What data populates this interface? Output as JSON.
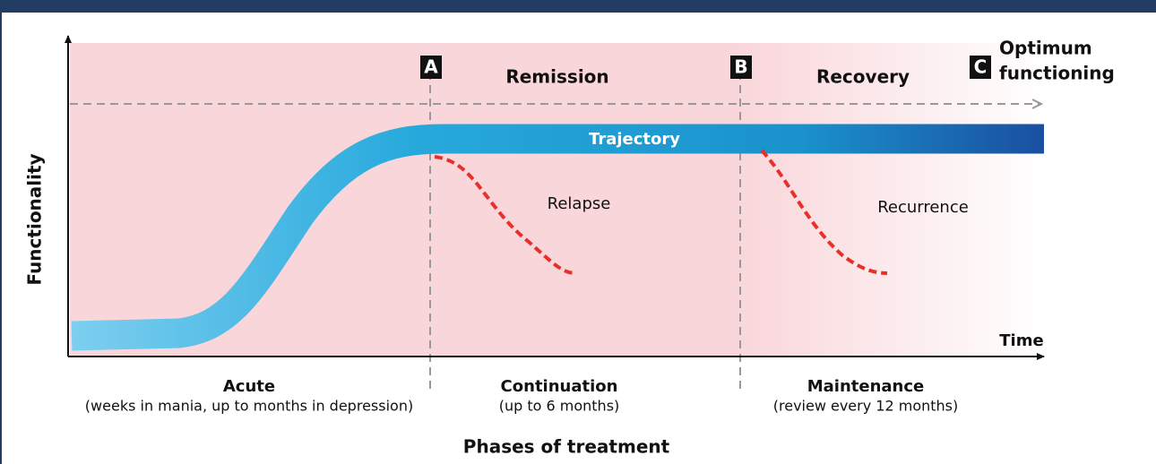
{
  "diagram": {
    "y_axis_label": "Functionality",
    "x_axis_label": "Time",
    "top_label": "Optimum functioning",
    "markers": [
      {
        "letter": "A",
        "label": "Remission"
      },
      {
        "letter": "B",
        "label": "Recovery"
      },
      {
        "letter": "C"
      }
    ],
    "trajectory": "Trajectory",
    "relapse": "Relapse",
    "recurrence": "Recurrence",
    "phases": [
      {
        "name": "Acute",
        "detail": "(weeks in mania, up to months in depression)"
      },
      {
        "name": "Continuation",
        "detail": "(up to 6 months)"
      },
      {
        "name": "Maintenance",
        "detail": "(review every 12 months)"
      }
    ],
    "footer": "Phases of treatment"
  }
}
